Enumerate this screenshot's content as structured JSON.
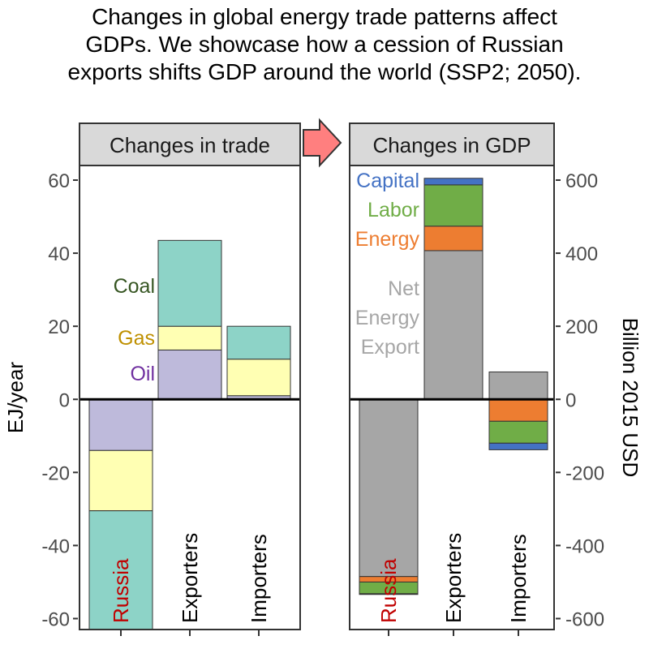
{
  "title_lines": [
    "Changes in global energy trade patterns affect",
    "GDPs. We showcase how a cession of Russian",
    "exports shifts GDP around the world (SSP2; 2050)."
  ],
  "chart_data": [
    {
      "type": "bar",
      "stacked": true,
      "title": "Changes in trade",
      "ylabel": "EJ/year",
      "ylim": [
        -63,
        64
      ],
      "yticks": [
        60,
        40,
        20,
        0,
        -20,
        -40,
        -60
      ],
      "ytick_labels": [
        "60",
        "40",
        "20",
        "0",
        "-20",
        "-40",
        "-60"
      ],
      "categories": [
        "Russia",
        "Exporters",
        "Importers"
      ],
      "category_colors": [
        "#c00000",
        "#000000",
        "#000000"
      ],
      "series": [
        {
          "name": "Oil",
          "color": "#bebadb",
          "label_color": "#7030a0",
          "values": [
            -14,
            13.5,
            1
          ]
        },
        {
          "name": "Gas",
          "color": "#ffffb3",
          "label_color": "#bf9000",
          "values": [
            -16.5,
            6.5,
            10
          ]
        },
        {
          "name": "Coal",
          "color": "#8dd3c7",
          "label_color": "#375623",
          "values": [
            -32.5,
            23.5,
            9
          ]
        }
      ],
      "grid": false
    },
    {
      "type": "bar",
      "stacked": true,
      "title": "Changes in GDP",
      "ylabel": "Billion 2015 USD",
      "ylim": [
        -630,
        640
      ],
      "yticks": [
        600,
        400,
        200,
        0,
        -200,
        -400,
        -600
      ],
      "ytick_labels": [
        "600",
        "400",
        "200",
        "0",
        "-200",
        "-400",
        "-600"
      ],
      "categories": [
        "Russia",
        "Exporters",
        "Importers"
      ],
      "category_colors": [
        "#c00000",
        "#000000",
        "#000000"
      ],
      "series": [
        {
          "name": "Net Energy Export",
          "label_lines": [
            "Net",
            "Energy",
            "Export"
          ],
          "color": "#a6a6a6",
          "label_color": "#a6a6a6",
          "values": [
            -485,
            407,
            75
          ]
        },
        {
          "name": "Energy",
          "color": "#ed7d31",
          "label_color": "#ed7d31",
          "values": [
            -15,
            67,
            -60
          ]
        },
        {
          "name": "Labor",
          "color": "#70ad47",
          "label_color": "#70ad47",
          "values": [
            -32,
            113,
            -60
          ]
        },
        {
          "name": "Capital",
          "color": "#4472c4",
          "label_color": "#4472c4",
          "values": [
            -2,
            18,
            -18
          ]
        }
      ],
      "grid": false
    }
  ]
}
